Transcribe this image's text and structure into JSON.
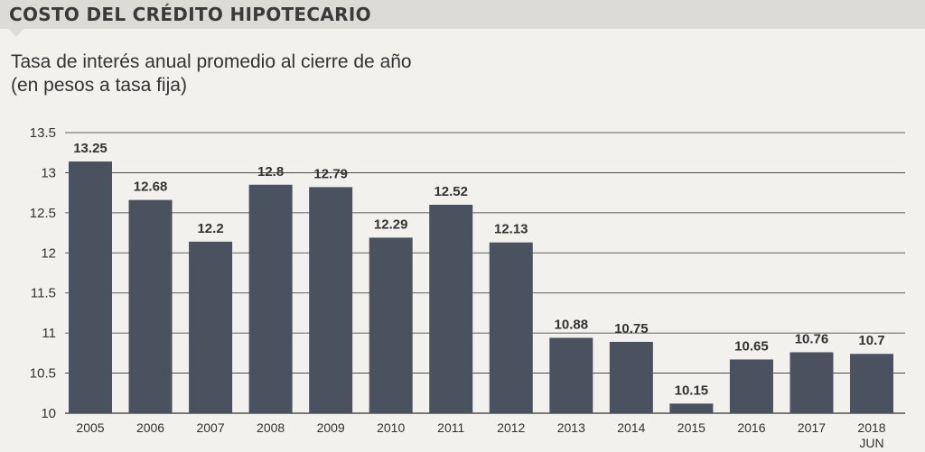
{
  "header": {
    "title": "COSTO DEL CRÉDITO HIPOTECARIO"
  },
  "subtitle": {
    "line1": "Tasa de interés anual promedio al cierre de año",
    "line2": "(en pesos a tasa fija)"
  },
  "colors": {
    "bar": "#4a5260",
    "grid": "#333333",
    "background": "#f2f1ee",
    "header": "#dcdbd6"
  },
  "chart_data": {
    "type": "bar",
    "title": "Tasa de interés anual promedio al cierre de año",
    "subtitle": "(en pesos a tasa fija)",
    "categories": [
      "2005",
      "2006",
      "2007",
      "2008",
      "2009",
      "2010",
      "2011",
      "2012",
      "2013",
      "2014",
      "2015",
      "2016",
      "2017",
      "2018"
    ],
    "category_sublabels": [
      "",
      "",
      "",
      "",
      "",
      "",
      "",
      "",
      "",
      "",
      "",
      "",
      "",
      "JUN"
    ],
    "values": [
      13.25,
      12.68,
      12.2,
      12.8,
      12.79,
      12.29,
      12.52,
      12.13,
      10.88,
      10.75,
      10.15,
      10.65,
      10.76,
      10.7
    ],
    "value_labels": [
      "13.25",
      "12.68",
      "12.2",
      "12.8",
      "12.79",
      "12.29",
      "12.52",
      "12.13",
      "10.88",
      "10.75",
      "10.15",
      "10.65",
      "10.76",
      "10.7"
    ],
    "bar_heights": [
      13.14,
      12.66,
      12.14,
      12.85,
      12.82,
      12.19,
      12.6,
      12.13,
      10.94,
      10.89,
      10.12,
      10.67,
      10.76,
      10.74
    ],
    "ylim": [
      10,
      13.5
    ],
    "yticks": [
      "10",
      "10.5",
      "11",
      "11.5",
      "12",
      "12.5",
      "13",
      "13.5"
    ],
    "grid": true,
    "xlabel": "",
    "ylabel": ""
  }
}
